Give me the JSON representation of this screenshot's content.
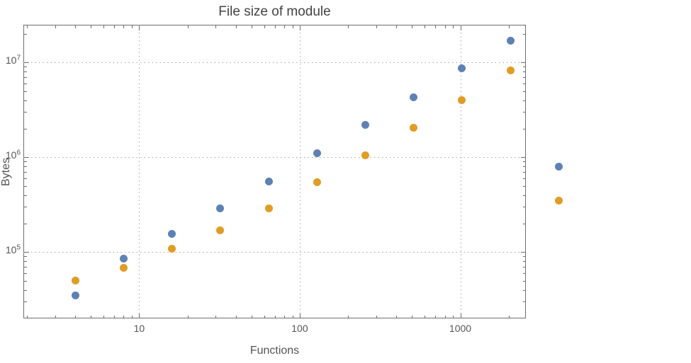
{
  "title": "File size of module",
  "chart_data": {
    "type": "scatter",
    "title": "File size of module",
    "xlabel": "Functions",
    "ylabel": "Bytes",
    "x_scale": "log",
    "y_scale": "log",
    "xlim": [
      1.9,
      2560
    ],
    "ylim": [
      20000,
      25000000
    ],
    "x_ticks": [
      10,
      100,
      1000
    ],
    "y_ticks": [
      100000,
      1000000,
      10000000
    ],
    "grid": "dotted",
    "legend": "none",
    "x": [
      4,
      8,
      16,
      32,
      64,
      128,
      256,
      512,
      1024,
      2048,
      4096
    ],
    "series": [
      {
        "name": "blue",
        "color": "#5e81b5",
        "values": [
          35000,
          85000,
          155000,
          290000,
          560000,
          1100000,
          2200000,
          4300000,
          8700000,
          17000000,
          800000
        ]
      },
      {
        "name": "orange",
        "color": "#e09c24",
        "values": [
          50000,
          68000,
          108000,
          170000,
          290000,
          550000,
          1050000,
          2050000,
          4000000,
          8200000,
          350000
        ]
      }
    ],
    "note": "last pair of points (x=4096) is drawn outside the right edge of the plot frame"
  },
  "colors": {
    "blue_points": "#5e81b5",
    "orange_points": "#e09c24",
    "frame": "#6e6e6e",
    "grid": "#a6a6a6",
    "text": "#4a4a4a",
    "background": "#ffffff"
  }
}
